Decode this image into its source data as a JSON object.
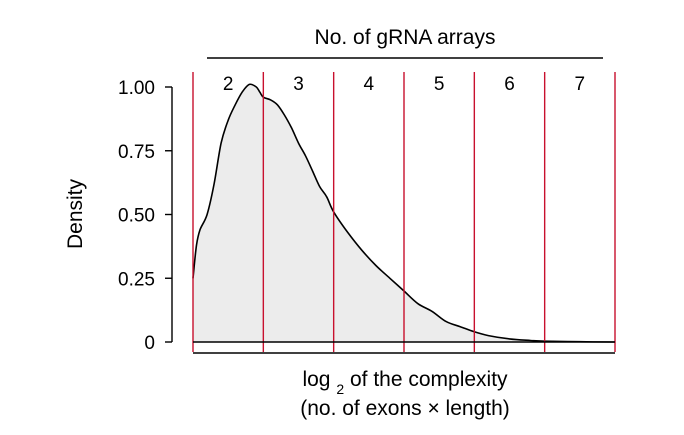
{
  "chart_data": {
    "type": "area",
    "title": "",
    "top_axis": {
      "title": "No. of gRNA arrays",
      "band_labels": [
        "2",
        "3",
        "4",
        "5",
        "6",
        "7"
      ]
    },
    "xlabel_line1_prefix": "log",
    "xlabel_line1_subscript": "2",
    "xlabel_line1_suffix": " of the complexity",
    "xlabel_line2": "(no. of exons × length)",
    "ylabel": "Density",
    "xlim": [
      0,
      6
    ],
    "ylim": [
      0,
      1.0
    ],
    "y_ticks": [
      0,
      0.25,
      0.5,
      0.75,
      1.0
    ],
    "y_tick_labels": [
      "0",
      "0.25",
      "0.50",
      "0.75",
      "1.00"
    ],
    "x_ticks_shown": false,
    "band_boundaries": [
      0,
      1,
      2,
      3,
      4,
      5,
      6
    ],
    "series": [
      {
        "x": [
          0,
          0.05,
          0.1,
          0.2,
          0.3,
          0.4,
          0.5,
          0.6,
          0.7,
          0.8,
          0.9,
          0.95,
          1.0,
          1.1,
          1.2,
          1.3,
          1.4,
          1.5,
          1.6,
          1.7,
          1.8,
          1.9,
          2.0,
          2.2,
          2.4,
          2.6,
          2.8,
          3.0,
          3.2,
          3.4,
          3.6,
          3.8,
          4.0,
          4.2,
          4.5,
          4.8,
          5.0,
          5.5,
          6.0
        ],
        "y": [
          0.25,
          0.38,
          0.44,
          0.5,
          0.62,
          0.78,
          0.87,
          0.93,
          0.98,
          1.01,
          1.0,
          0.98,
          0.96,
          0.95,
          0.93,
          0.89,
          0.84,
          0.78,
          0.73,
          0.67,
          0.61,
          0.57,
          0.51,
          0.43,
          0.36,
          0.3,
          0.25,
          0.2,
          0.15,
          0.12,
          0.08,
          0.06,
          0.04,
          0.025,
          0.012,
          0.006,
          0.003,
          0.001,
          0.0
        ]
      }
    ],
    "colors": {
      "fill": "#ececec",
      "curve": "#000000",
      "band_lines": "#c8102e",
      "axis": "#000000"
    },
    "grid": false,
    "legend": "none"
  }
}
